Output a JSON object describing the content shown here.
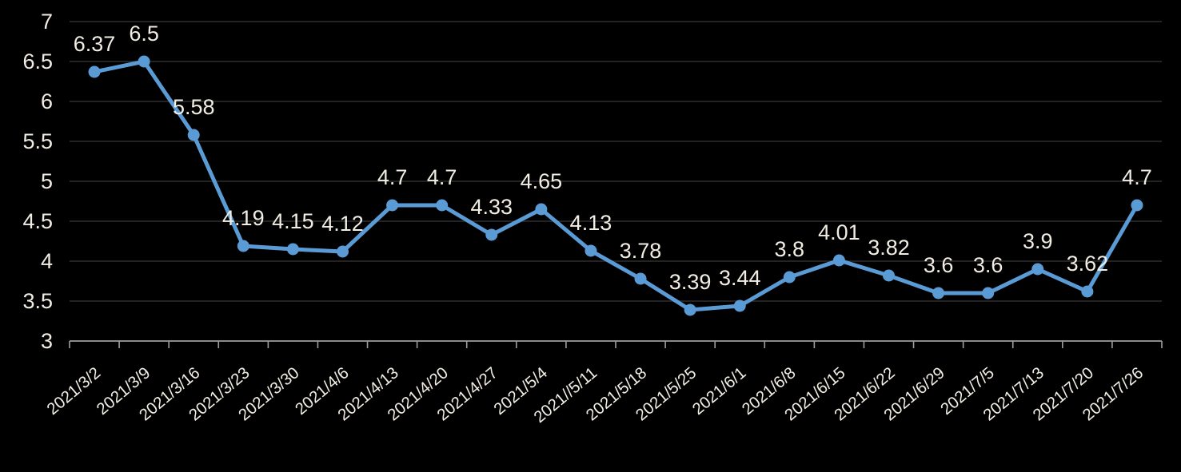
{
  "colors": {
    "background": "#000000",
    "series_line": "#5B9BD5",
    "marker_fill": "#5B9BD5",
    "data_label": "#F1EDE3",
    "axis_tick_label": "#F1EDE3",
    "gridline": "#2F2F2F",
    "axis_line": "#9E9E9E"
  },
  "chart_data": {
    "type": "line",
    "title": "",
    "xlabel": "",
    "ylabel": "",
    "categories": [
      "2021/3/2",
      "2021/3/9",
      "2021/3/16",
      "2021/3/23",
      "2021/3/30",
      "2021/4/6",
      "2021/4/13",
      "2021/4/20",
      "2021/4/27",
      "2021/5/4",
      "2021//5/11",
      "2021/5/18",
      "2021/5/25",
      "2021/6/1",
      "2021/6/8",
      "2021/6/15",
      "2021/6/22",
      "2021/6/29",
      "2021/7/5",
      "2021/7/13",
      "2021/7/20",
      "2021/7/26"
    ],
    "values": [
      6.37,
      6.5,
      5.58,
      4.19,
      4.15,
      4.12,
      4.7,
      4.7,
      4.33,
      4.65,
      4.13,
      3.78,
      3.39,
      3.44,
      3.8,
      4.01,
      3.82,
      3.6,
      3.6,
      3.9,
      3.62,
      4.7
    ],
    "data_labels": [
      "6.37",
      "6.5",
      "5.58",
      "4.19",
      "4.15",
      "4.12",
      "4.7",
      "4.7",
      "4.33",
      "4.65",
      "4.13",
      "3.78",
      "3.39",
      "3.44",
      "3.8",
      "4.01",
      "3.82",
      "3.6",
      "3.6",
      "3.9",
      "3.62",
      "4.7"
    ],
    "y_ticks": [
      {
        "value": 3,
        "label": "3"
      },
      {
        "value": 3.5,
        "label": "3.5"
      },
      {
        "value": 4,
        "label": "4"
      },
      {
        "value": 4.5,
        "label": "4.5"
      },
      {
        "value": 5,
        "label": "5"
      },
      {
        "value": 5.5,
        "label": "5.5"
      },
      {
        "value": 6,
        "label": "6"
      },
      {
        "value": 6.5,
        "label": "6.5"
      },
      {
        "value": 7,
        "label": "7"
      }
    ],
    "ylim": [
      3,
      7
    ],
    "grid": true,
    "legend_position": "none",
    "x_label_rotation_deg": -40
  }
}
